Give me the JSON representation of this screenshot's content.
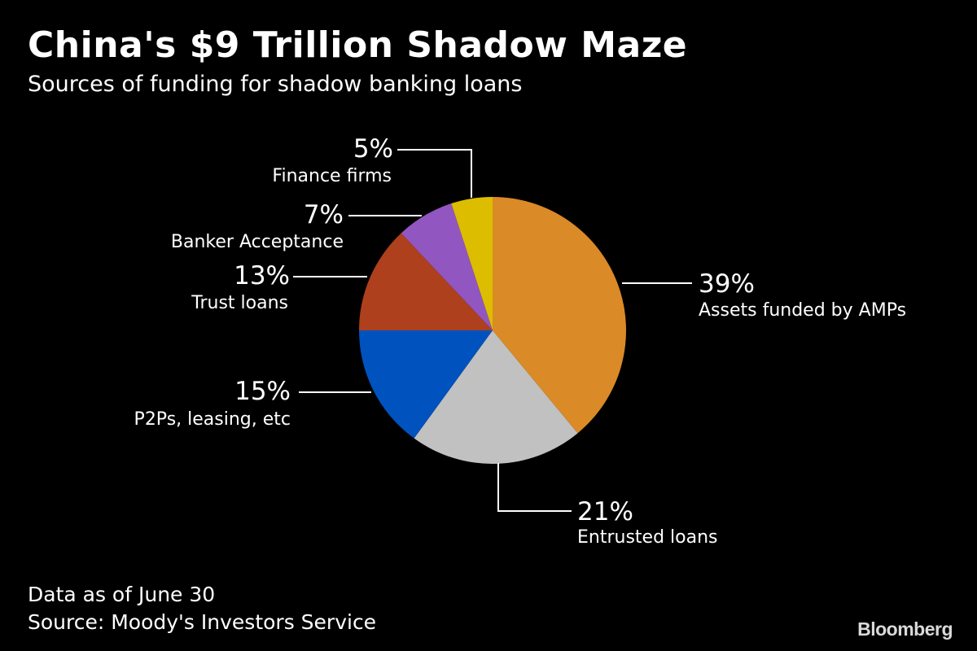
{
  "header": {
    "title": "China's $9 Trillion Shadow Maze",
    "subtitle": "Sources of funding for shadow banking loans"
  },
  "footer": {
    "note": "Data as of June 30",
    "source": "Source: Moody's Investors Service"
  },
  "brand": {
    "logo_text": "Bloomberg"
  },
  "chart_data": {
    "type": "pie",
    "title": "China's $9 Trillion Shadow Maze",
    "subtitle": "Sources of funding for shadow banking loans",
    "start": "12 o'clock",
    "direction": "clockwise",
    "slices": [
      {
        "label": "Assets funded by AMPs",
        "value": 39,
        "display": "39%",
        "color": "#da8a26"
      },
      {
        "label": "Entrusted loans",
        "value": 21,
        "display": "21%",
        "color": "#c1c1c1"
      },
      {
        "label": "P2Ps, leasing, etc",
        "value": 15,
        "display": "15%",
        "color": "#0052bf"
      },
      {
        "label": "Trust loans",
        "value": 13,
        "display": "13%",
        "color": "#ae401d"
      },
      {
        "label": "Banker Acceptance",
        "value": 7,
        "display": "7%",
        "color": "#9256c0"
      },
      {
        "label": "Finance firms",
        "value": 5,
        "display": "5%",
        "color": "#dcbd00"
      }
    ]
  }
}
